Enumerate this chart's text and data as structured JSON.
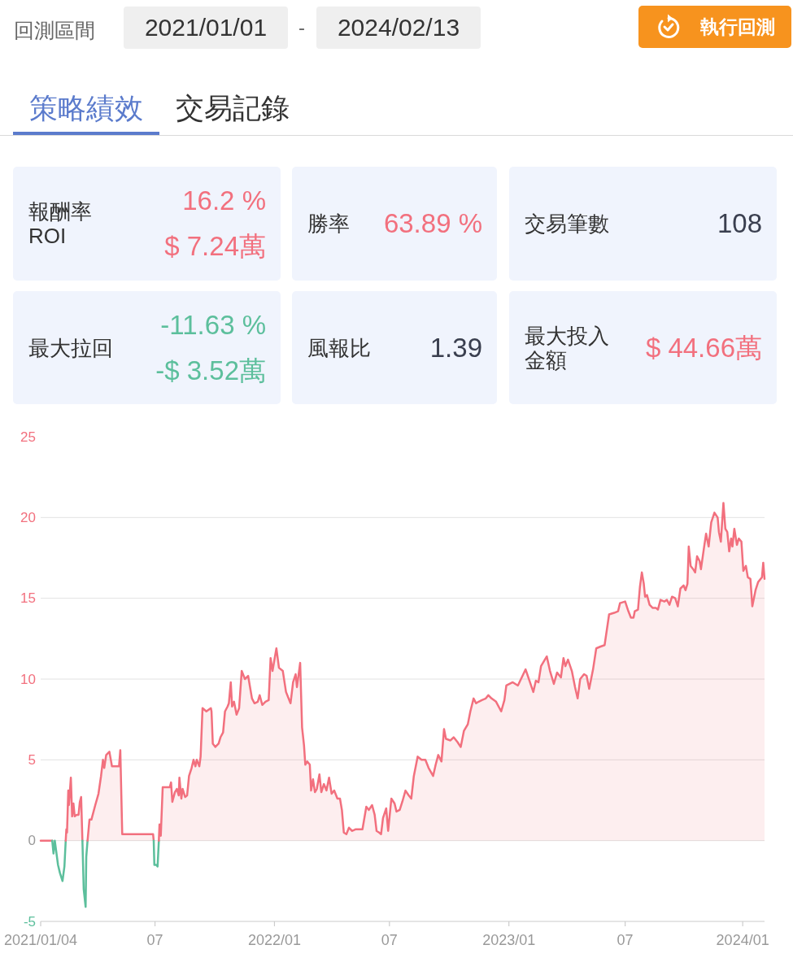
{
  "chart_data": [
    {
      "type": "other",
      "annotations": [
        "回測區間",
        "2021/01/01",
        "-",
        "2024/02/13",
        "執行回測",
        "策略績效",
        "交易記錄",
        "報酬率 ROI",
        "16.2 %",
        "$ 7.24萬",
        "勝率",
        "63.89 %",
        "交易筆數",
        "108",
        "最大拉回",
        "-11.63 %",
        "-$ 3.52萬",
        "風報比",
        "1.39",
        "最大投入金額",
        "$ 44.66萬"
      ]
    },
    {
      "type": "area",
      "xlim": [
        "2021-01-04",
        "2024-02-05"
      ],
      "xticks": [
        {
          "value": "2021-01-04",
          "label": "2021/01/04"
        },
        {
          "value": "2021-07-01",
          "label": "07"
        },
        {
          "value": "2022-01-03",
          "label": "2022/01"
        },
        {
          "value": "2022-07-01",
          "label": "07"
        },
        {
          "value": "2023-01-03",
          "label": "2023/01"
        },
        {
          "value": "2023-07-03",
          "label": "07"
        },
        {
          "value": "2024-01-02",
          "label": "2024/01"
        }
      ],
      "ylim": [
        -5,
        25
      ],
      "yticks": [
        -5,
        0,
        5,
        10,
        15,
        20,
        25
      ],
      "grid": "y",
      "series": [
        {
          "type": "line",
          "color": "#f2707e",
          "x": [
            "2021-01-04",
            "2021-01-22"
          ],
          "values": [
            0,
            0
          ]
        },
        {
          "type": "line",
          "color": "#5cbf9c",
          "x": [
            "2021-01-22",
            "2021-01-24",
            "2021-01-26",
            "2021-01-31",
            "2021-02-03",
            "2021-02-07",
            "2021-02-10",
            "2021-02-12"
          ],
          "values": [
            0,
            -0.8,
            0,
            -1.5,
            -2.0,
            -2.5,
            -1.6,
            0
          ]
        },
        {
          "type": "area",
          "color": "#f2707e",
          "x": [
            "2021-02-12",
            "2021-02-13",
            "2021-02-14",
            "2021-02-16",
            "2021-02-17",
            "2021-02-20",
            "2021-02-22",
            "2021-02-24",
            "2021-02-26",
            "2021-03-01",
            "2021-03-04",
            "2021-03-06",
            "2021-03-08",
            "2021-03-10"
          ],
          "values": [
            0,
            0.7,
            0.5,
            3.1,
            2.2,
            3.9,
            1.5,
            2.3,
            1.5,
            1.6,
            1.6,
            2.4,
            2.7,
            0
          ]
        },
        {
          "type": "line",
          "color": "#5cbf9c",
          "x": [
            "2021-03-10",
            "2021-03-12",
            "2021-03-15",
            "2021-03-16",
            "2021-03-18"
          ],
          "values": [
            0,
            -3.0,
            -4.1,
            -1.0,
            0
          ]
        },
        {
          "type": "area",
          "color": "#f2707e",
          "x": [
            "2021-03-18",
            "2021-03-21",
            "2021-03-24",
            "2021-03-30",
            "2021-04-04",
            "2021-04-08",
            "2021-04-11",
            "2021-04-13",
            "2021-04-16",
            "2021-04-21",
            "2021-04-25",
            "2021-05-06",
            "2021-05-08",
            "2021-05-11",
            "2021-06-28",
            "2021-06-29"
          ],
          "values": [
            0,
            1.3,
            1.3,
            2.2,
            2.9,
            4.0,
            5.0,
            4.5,
            5.3,
            5.5,
            4.6,
            4.6,
            5.6,
            0.4,
            0.4,
            0
          ]
        },
        {
          "type": "line",
          "color": "#5cbf9c",
          "x": [
            "2021-06-29",
            "2021-06-30",
            "2021-07-03",
            "2021-07-05",
            "2021-07-07"
          ],
          "values": [
            0,
            -1.5,
            -1.5,
            -1.6,
            0
          ]
        },
        {
          "type": "area",
          "color": "#f2707e",
          "x": [
            "2021-07-07",
            "2021-07-08",
            "2021-07-10",
            "2021-07-13",
            "2021-07-24",
            "2021-07-26",
            "2021-07-28",
            "2021-08-01",
            "2021-08-04",
            "2021-08-07",
            "2021-08-08",
            "2021-08-11",
            "2021-08-13",
            "2021-08-17",
            "2021-08-20",
            "2021-08-23",
            "2021-08-27",
            "2021-08-30",
            "2021-09-02",
            "2021-09-04",
            "2021-09-08",
            "2021-09-10",
            "2021-09-13",
            "2021-09-19",
            "2021-09-26",
            "2021-09-27",
            "2021-09-29",
            "2021-10-03",
            "2021-10-08",
            "2021-10-11",
            "2021-10-15",
            "2021-10-18",
            "2021-10-22",
            "2021-10-24",
            "2021-10-27",
            "2021-10-29",
            "2021-11-01",
            "2021-11-05",
            "2021-11-09",
            "2021-11-13",
            "2021-11-18",
            "2021-11-23",
            "2021-11-26",
            "2021-11-29",
            "2021-12-03",
            "2021-12-08",
            "2021-12-11",
            "2021-12-15",
            "2021-12-20",
            "2021-12-25",
            "2021-12-28",
            "2021-12-31",
            "2022-01-06",
            "2022-01-10",
            "2022-01-16",
            "2022-01-21",
            "2022-01-28",
            "2022-02-01",
            "2022-02-05",
            "2022-02-07",
            "2022-02-12",
            "2022-02-15",
            "2022-02-18",
            "2022-02-20",
            "2022-02-23",
            "2022-02-27",
            "2022-03-01",
            "2022-03-04",
            "2022-03-07",
            "2022-03-10",
            "2022-03-14",
            "2022-03-17",
            "2022-03-21",
            "2022-03-25",
            "2022-03-29",
            "2022-04-02",
            "2022-04-06",
            "2022-04-11",
            "2022-04-15",
            "2022-04-18",
            "2022-04-21",
            "2022-04-25",
            "2022-04-29",
            "2022-05-04",
            "2022-05-09",
            "2022-05-16",
            "2022-05-20",
            "2022-05-26",
            "2022-05-30",
            "2022-06-04",
            "2022-06-08",
            "2022-06-11",
            "2022-06-15",
            "2022-06-18",
            "2022-06-21",
            "2022-06-26",
            "2022-06-29",
            "2022-07-04",
            "2022-07-09",
            "2022-07-12",
            "2022-07-17",
            "2022-07-21",
            "2022-07-26",
            "2022-07-31",
            "2022-08-04",
            "2022-08-08",
            "2022-08-14",
            "2022-08-20",
            "2022-08-26",
            "2022-08-31",
            "2022-09-07",
            "2022-09-11",
            "2022-09-15",
            "2022-09-20",
            "2022-09-24",
            "2022-09-27",
            "2022-10-04",
            "2022-10-09",
            "2022-10-15",
            "2022-10-20",
            "2022-10-25",
            "2022-10-31",
            "2022-11-04",
            "2022-11-09",
            "2022-11-13",
            "2022-11-17",
            "2022-11-22",
            "2022-11-28",
            "2022-12-02",
            "2022-12-07",
            "2022-12-14",
            "2022-12-22",
            "2022-12-27",
            "2022-12-30",
            "2023-01-09",
            "2023-01-17",
            "2023-01-29",
            "2023-02-10",
            "2023-02-14",
            "2023-02-18",
            "2023-02-22",
            "2023-03-03",
            "2023-03-08",
            "2023-03-14",
            "2023-03-19",
            "2023-03-25",
            "2023-03-29",
            "2023-04-01",
            "2023-04-05",
            "2023-04-11",
            "2023-04-16",
            "2023-04-20",
            "2023-04-24",
            "2023-04-30",
            "2023-05-04",
            "2023-05-08",
            "2023-05-14",
            "2023-05-19",
            "2023-05-25",
            "2023-06-01",
            "2023-06-08",
            "2023-06-16",
            "2023-06-22",
            "2023-06-25",
            "2023-07-03",
            "2023-07-08",
            "2023-07-12",
            "2023-07-16",
            "2023-07-18",
            "2023-07-23",
            "2023-07-26",
            "2023-07-29",
            "2023-08-01",
            "2023-08-03",
            "2023-08-06",
            "2023-08-10",
            "2023-08-15",
            "2023-08-20",
            "2023-08-23",
            "2023-08-27",
            "2023-09-02",
            "2023-09-06",
            "2023-09-10",
            "2023-09-14",
            "2023-09-19",
            "2023-09-23",
            "2023-09-27",
            "2023-10-02",
            "2023-10-05",
            "2023-10-08",
            "2023-10-10",
            "2023-10-13",
            "2023-10-17",
            "2023-10-20",
            "2023-10-23",
            "2023-10-27",
            "2023-10-29",
            "2023-11-03",
            "2023-11-06",
            "2023-11-10",
            "2023-11-14",
            "2023-11-19",
            "2023-11-24",
            "2023-11-26",
            "2023-11-29",
            "2023-12-03",
            "2023-12-06",
            "2023-12-09",
            "2023-12-12",
            "2023-12-15",
            "2023-12-17",
            "2023-12-20",
            "2023-12-24",
            "2023-12-27",
            "2023-12-31",
            "2024-01-03",
            "2024-01-07",
            "2024-01-10",
            "2024-01-14",
            "2024-01-17",
            "2024-01-22",
            "2024-01-26",
            "2024-02-01",
            "2024-02-03",
            "2024-02-05"
          ],
          "values": [
            0,
            1.0,
            0.3,
            3.3,
            3.3,
            3.6,
            2.4,
            3.0,
            3.2,
            2.8,
            3.9,
            2.6,
            3.2,
            2.7,
            2.8,
            4.0,
            4.5,
            5.0,
            4.6,
            5.0,
            4.6,
            5.2,
            8.2,
            8.0,
            8.2,
            8.0,
            6.0,
            5.8,
            6.0,
            6.4,
            6.7,
            8.0,
            8.3,
            8.5,
            9.8,
            8.3,
            8.6,
            7.8,
            8.2,
            10.5,
            10.0,
            10.2,
            9.5,
            8.8,
            8.5,
            8.6,
            9.0,
            8.4,
            8.6,
            8.7,
            11.3,
            10.5,
            11.9,
            10.7,
            10.5,
            9.2,
            8.5,
            9.8,
            10.3,
            9.5,
            11.0,
            7.0,
            5.9,
            4.7,
            4.9,
            4.7,
            3.1,
            3.8,
            3.0,
            3.2,
            4.1,
            3.0,
            3.5,
            3.1,
            3.9,
            2.9,
            3.1,
            2.6,
            2.6,
            1.9,
            0.5,
            0.4,
            0.8,
            0.6,
            0.7,
            0.7,
            0.7,
            2.1,
            1.9,
            2.2,
            1.6,
            0.6,
            0.5,
            0.4,
            1.4,
            2.0,
            0.6,
            2.6,
            2.3,
            1.8,
            1.9,
            2.4,
            3.1,
            2.8,
            2.6,
            4.0,
            5.2,
            5.0,
            5.0,
            4.5,
            4.0,
            4.7,
            5.3,
            4.9,
            6.9,
            6.3,
            6.2,
            6.4,
            6.1,
            5.8,
            6.8,
            7.2,
            8.0,
            8.8,
            8.5,
            8.6,
            8.7,
            8.8,
            9.0,
            8.8,
            8.6,
            8.0,
            8.7,
            9.6,
            9.8,
            9.6,
            10.6,
            9.2,
            9.9,
            9.8,
            10.8,
            11.4,
            10.5,
            9.7,
            10.4,
            10.1,
            11.3,
            10.8,
            11.2,
            10.5,
            9.5,
            8.8,
            10.0,
            10.3,
            10.2,
            9.4,
            10.6,
            11.9,
            12.0,
            12.1,
            14.0,
            14.1,
            14.2,
            14.7,
            14.8,
            14.2,
            13.8,
            13.8,
            14.2,
            14.3,
            15.7,
            16.6,
            15.9,
            15.1,
            15.2,
            14.6,
            14.4,
            14.4,
            14.3,
            14.9,
            14.8,
            14.9,
            14.6,
            15.1,
            15.0,
            14.5,
            15.6,
            15.8,
            15.5,
            15.9,
            18.2,
            17.0,
            16.8,
            16.6,
            17.6,
            17.3,
            16.8,
            18.2,
            19.0,
            18.2,
            19.7,
            20.3,
            20.0,
            19.1,
            18.5,
            20.9,
            19.3,
            19.1,
            17.9,
            18.7,
            18.2,
            19.3,
            18.3,
            18.7,
            18.5,
            16.7,
            17.0,
            16.3,
            16.2,
            14.5,
            15.5,
            16.0,
            16.3,
            17.2,
            16.2
          ]
        }
      ]
    }
  ]
}
